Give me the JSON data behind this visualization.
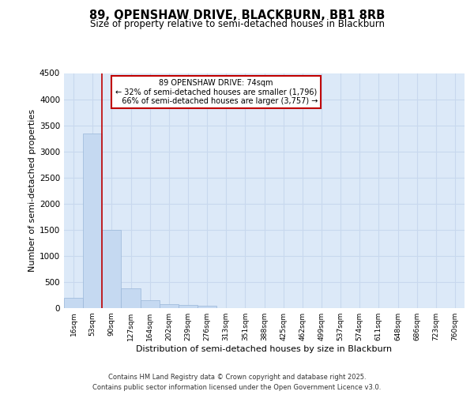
{
  "title_line1": "89, OPENSHAW DRIVE, BLACKBURN, BB1 8RB",
  "title_line2": "Size of property relative to semi-detached houses in Blackburn",
  "xlabel": "Distribution of semi-detached houses by size in Blackburn",
  "ylabel": "Number of semi-detached properties",
  "footnote": "Contains HM Land Registry data © Crown copyright and database right 2025.\nContains public sector information licensed under the Open Government Licence v3.0.",
  "bin_labels": [
    "16sqm",
    "53sqm",
    "90sqm",
    "127sqm",
    "164sqm",
    "202sqm",
    "239sqm",
    "276sqm",
    "313sqm",
    "351sqm",
    "388sqm",
    "425sqm",
    "462sqm",
    "499sqm",
    "537sqm",
    "574sqm",
    "611sqm",
    "648sqm",
    "686sqm",
    "723sqm",
    "760sqm"
  ],
  "bar_values": [
    200,
    3350,
    1500,
    380,
    150,
    80,
    55,
    50,
    0,
    0,
    0,
    0,
    0,
    0,
    0,
    0,
    0,
    0,
    0,
    0,
    0
  ],
  "bar_color": "#c5d9f1",
  "bar_edge_color": "#9ab7d9",
  "grid_color": "#c8d8ee",
  "background_color": "#dce9f8",
  "vline_position": 1.5,
  "vline_color": "#c00000",
  "annotation_text": "89 OPENSHAW DRIVE: 74sqm\n← 32% of semi-detached houses are smaller (1,796)\n   66% of semi-detached houses are larger (3,757) →",
  "annotation_box_edgecolor": "#c00000",
  "ylim": [
    0,
    4500
  ],
  "yticks": [
    0,
    500,
    1000,
    1500,
    2000,
    2500,
    3000,
    3500,
    4000,
    4500
  ],
  "figsize": [
    6.0,
    5.0
  ],
  "dpi": 100
}
